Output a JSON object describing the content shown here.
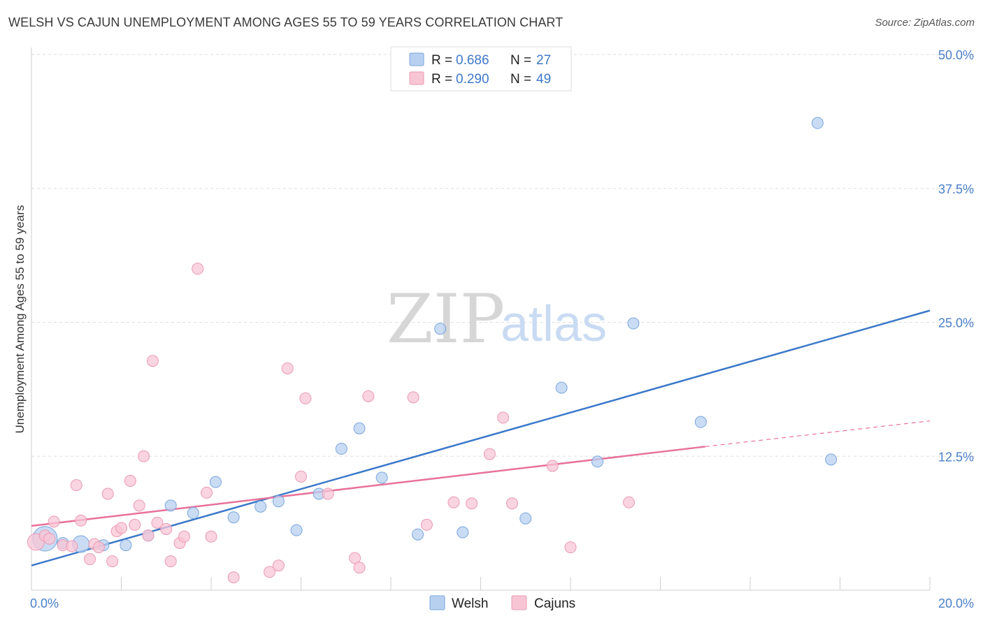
{
  "header": {
    "title": "WELSH VS CAJUN UNEMPLOYMENT AMONG AGES 55 TO 59 YEARS CORRELATION CHART",
    "source": "Source: ZipAtlas.com"
  },
  "watermark": {
    "zip": "ZIP",
    "atlas": "atlas"
  },
  "legend": {
    "rows": [
      {
        "r_label": "R =",
        "r_value": "0.686",
        "n_label": "N =",
        "n_value": "27",
        "color": "#b8d0f0",
        "stroke": "#7aa6dc"
      },
      {
        "r_label": "R =",
        "r_value": "0.290",
        "n_label": "N =",
        "n_value": "49",
        "color": "#f8c5d5",
        "stroke": "#e99ab3"
      }
    ]
  },
  "chart_data": {
    "type": "scatter",
    "title": "WELSH VS CAJUN UNEMPLOYMENT AMONG AGES 55 TO 59 YEARS CORRELATION CHART",
    "xlabel": "",
    "ylabel": "Unemployment Among Ages 55 to 59 years",
    "xlim": [
      0,
      20
    ],
    "ylim": [
      0,
      50
    ],
    "x_tick_labels": [
      "0.0%",
      "20.0%"
    ],
    "y_ticks": [
      12.5,
      25.0,
      37.5,
      50.0
    ],
    "y_tick_labels": [
      "12.5%",
      "25.0%",
      "37.5%",
      "50.0%"
    ],
    "legend_position": "bottom-center",
    "series": [
      {
        "name": "Welsh",
        "color": "#3a78c9",
        "fill": "#b8d0f0",
        "stroke": "#7aa6dc",
        "points": [
          [
            0.3,
            4.8,
            2.2
          ],
          [
            1.1,
            4.3,
            1.5
          ],
          [
            1.6,
            4.2,
            1
          ],
          [
            2.1,
            4.2,
            1
          ],
          [
            2.6,
            5.1,
            1
          ],
          [
            3.1,
            7.9,
            1
          ],
          [
            3.6,
            7.2,
            1
          ],
          [
            4.1,
            10.1,
            1
          ],
          [
            4.5,
            6.8,
            1
          ],
          [
            5.1,
            7.8,
            1
          ],
          [
            5.5,
            8.3,
            1
          ],
          [
            5.9,
            5.6,
            1
          ],
          [
            6.4,
            9.0,
            1
          ],
          [
            6.9,
            13.2,
            1
          ],
          [
            7.3,
            15.1,
            1
          ],
          [
            7.8,
            10.5,
            1
          ],
          [
            8.6,
            5.2,
            1
          ],
          [
            9.1,
            24.4,
            1
          ],
          [
            9.6,
            5.4,
            1
          ],
          [
            11.0,
            6.7,
            1
          ],
          [
            11.8,
            18.9,
            1
          ],
          [
            12.6,
            12.0,
            1
          ],
          [
            13.4,
            24.9,
            1
          ],
          [
            14.9,
            15.7,
            1
          ],
          [
            17.5,
            43.6,
            1
          ],
          [
            17.8,
            12.2,
            1
          ],
          [
            0.7,
            4.4,
            1
          ]
        ],
        "trend": {
          "x0": 0.0,
          "y0": 2.3,
          "x1": 20.0,
          "y1": 26.1
        }
      },
      {
        "name": "Cajuns",
        "color": "#e8719a",
        "fill": "#f8c5d5",
        "stroke": "#e99ab3",
        "points": [
          [
            0.1,
            4.5,
            1.5
          ],
          [
            0.3,
            5.1,
            1
          ],
          [
            0.5,
            6.4,
            1
          ],
          [
            0.7,
            4.2,
            1
          ],
          [
            1.0,
            9.8,
            1
          ],
          [
            1.1,
            6.5,
            1
          ],
          [
            1.3,
            2.9,
            1
          ],
          [
            1.4,
            4.3,
            1
          ],
          [
            1.5,
            4.0,
            1
          ],
          [
            1.7,
            9.0,
            1
          ],
          [
            1.8,
            2.7,
            1
          ],
          [
            1.9,
            5.5,
            1
          ],
          [
            2.0,
            5.8,
            1
          ],
          [
            2.2,
            10.2,
            1
          ],
          [
            2.3,
            6.1,
            1
          ],
          [
            2.4,
            7.9,
            1
          ],
          [
            2.5,
            12.5,
            1
          ],
          [
            2.7,
            21.4,
            1
          ],
          [
            2.8,
            6.3,
            1
          ],
          [
            3.0,
            5.7,
            1
          ],
          [
            3.1,
            2.7,
            1
          ],
          [
            3.3,
            4.4,
            1
          ],
          [
            3.4,
            5.0,
            1
          ],
          [
            3.7,
            30.0,
            1
          ],
          [
            3.9,
            9.1,
            1
          ],
          [
            4.0,
            5.0,
            1
          ],
          [
            4.5,
            1.2,
            1
          ],
          [
            5.3,
            1.7,
            1
          ],
          [
            5.5,
            2.3,
            1
          ],
          [
            5.7,
            20.7,
            1
          ],
          [
            6.0,
            10.6,
            1
          ],
          [
            6.1,
            17.9,
            1
          ],
          [
            6.6,
            9.0,
            1
          ],
          [
            7.2,
            3.0,
            1
          ],
          [
            7.3,
            2.1,
            1
          ],
          [
            7.5,
            18.1,
            1
          ],
          [
            8.5,
            18.0,
            1
          ],
          [
            8.8,
            6.1,
            1
          ],
          [
            9.4,
            8.2,
            1
          ],
          [
            9.8,
            8.1,
            1
          ],
          [
            10.2,
            12.7,
            1
          ],
          [
            10.5,
            16.1,
            1
          ],
          [
            10.7,
            8.1,
            1
          ],
          [
            11.6,
            11.6,
            1
          ],
          [
            12.0,
            4.0,
            1
          ],
          [
            13.3,
            8.2,
            1
          ],
          [
            0.4,
            4.8,
            1
          ],
          [
            0.9,
            4.1,
            1
          ],
          [
            2.6,
            5.1,
            1
          ]
        ],
        "trend": {
          "x0": 0.0,
          "y0": 6.0,
          "x1": 15.0,
          "y1": 13.4,
          "dashed_x1": 20.0,
          "dashed_y1": 15.8
        }
      }
    ]
  }
}
